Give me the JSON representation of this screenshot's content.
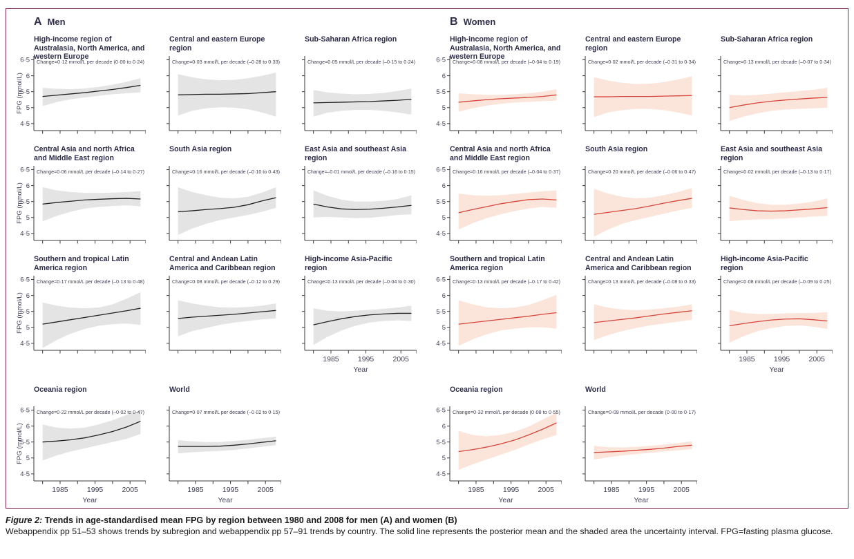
{
  "figure": {
    "border_color": "#7b2150",
    "title_color": "#2d2d4b",
    "axis_color": "#3a3a3a",
    "text_color": "#3f3f55"
  },
  "caption": {
    "prefix": "Figure 2:",
    "title": " Trends in age-standardised mean FPG by region between 1980 and 2008 for men (A) and women (B)",
    "body": "Webappendix pp 51–53 shows trends by subregion and webappendix pp 57–91 trends by country. The solid line represents the posterior mean and the shaded area the uncertainty interval. FPG=fasting plasma glucose."
  },
  "chart_data": {
    "type": "line",
    "x": [
      1980,
      1984,
      1988,
      1992,
      1996,
      2000,
      2004,
      2008
    ],
    "xlabel": "Year",
    "ylabel": "FPG (mmol/L)",
    "ylim": [
      4.28,
      6.62
    ],
    "ytick_values": [
      4.5,
      5,
      5.5,
      6,
      6.5
    ],
    "ytick_labels": [
      "4·5",
      "5",
      "5·5",
      "6",
      "6·5"
    ],
    "xtick_years": [
      1980,
      1985,
      1990,
      1995,
      2000,
      2005
    ],
    "xtick_labeled": [
      1985,
      1995,
      2005
    ],
    "legend": "solid line = posterior mean; shaded area = uncertainty interval",
    "groups": [
      {
        "id": "A",
        "label": "Men",
        "line_color": "#231f20",
        "band_color": "#e4e4e4",
        "charts": [
          {
            "title": "High-income region of Australasia, North America, and western Europe",
            "change": "Change=0·12 mmol/L per decade (0·00 to 0·24)",
            "line": [
              5.35,
              5.39,
              5.43,
              5.47,
              5.52,
              5.57,
              5.63,
              5.7
            ],
            "hi": [
              5.62,
              5.59,
              5.58,
              5.6,
              5.65,
              5.72,
              5.81,
              5.92
            ],
            "lo": [
              5.05,
              5.17,
              5.26,
              5.32,
              5.37,
              5.42,
              5.45,
              5.48
            ]
          },
          {
            "title": "Central and eastern Europe region",
            "change": "Change=0·03 mmol/L per decade (–0·28 to 0·33)",
            "line": [
              5.4,
              5.41,
              5.42,
              5.42,
              5.43,
              5.44,
              5.47,
              5.5
            ],
            "hi": [
              6.05,
              5.95,
              5.89,
              5.86,
              5.87,
              5.92,
              6.0,
              6.1
            ],
            "lo": [
              4.75,
              4.9,
              4.98,
              5.01,
              5.0,
              4.95,
              4.85,
              4.72
            ]
          },
          {
            "title": "Sub-Saharan Africa region",
            "change": "Change=0·05 mmol/L per decade (–0·15 to 0·24)",
            "line": [
              5.15,
              5.16,
              5.17,
              5.18,
              5.19,
              5.21,
              5.23,
              5.26
            ],
            "hi": [
              5.55,
              5.48,
              5.44,
              5.42,
              5.43,
              5.46,
              5.52,
              5.6
            ],
            "lo": [
              4.72,
              4.84,
              4.9,
              4.93,
              4.93,
              4.9,
              4.85,
              4.78
            ]
          },
          {
            "title": "Central Asia and north Africa and Middle East region",
            "change": "Change=0·06 mmol/L per decade (–0·14 to 0·27)",
            "line": [
              5.42,
              5.47,
              5.51,
              5.55,
              5.57,
              5.59,
              5.6,
              5.58
            ],
            "hi": [
              5.95,
              5.85,
              5.8,
              5.77,
              5.77,
              5.78,
              5.8,
              5.83
            ],
            "lo": [
              4.88,
              5.05,
              5.18,
              5.28,
              5.33,
              5.36,
              5.38,
              5.35
            ]
          },
          {
            "title": "South Asia region",
            "change": "Change=0·16 mmol/L per decade (–0·10 to 0·43)",
            "line": [
              5.18,
              5.21,
              5.25,
              5.28,
              5.32,
              5.4,
              5.52,
              5.62
            ],
            "hi": [
              5.95,
              5.8,
              5.7,
              5.62,
              5.6,
              5.65,
              5.78,
              5.95
            ],
            "lo": [
              4.45,
              4.65,
              4.8,
              4.92,
              5.0,
              5.08,
              5.18,
              5.3
            ]
          },
          {
            "title": "East Asia and southeast Asia region",
            "change": "Change=–0·01 mmol/L per decade (–0·16 to 0·15)",
            "line": [
              5.42,
              5.33,
              5.27,
              5.25,
              5.26,
              5.29,
              5.33,
              5.38
            ],
            "hi": [
              5.85,
              5.68,
              5.56,
              5.5,
              5.5,
              5.52,
              5.58,
              5.7
            ],
            "lo": [
              5.0,
              5.02,
              5.0,
              4.98,
              4.99,
              5.03,
              5.08,
              5.1
            ]
          },
          {
            "title": "Southern and tropical Latin America region",
            "change": "Change=0·17 mmol/L per decade (–0·13 to 0·48)",
            "line": [
              5.1,
              5.17,
              5.24,
              5.31,
              5.38,
              5.45,
              5.52,
              5.6
            ],
            "hi": [
              5.78,
              5.68,
              5.62,
              5.6,
              5.62,
              5.72,
              5.9,
              6.1
            ],
            "lo": [
              4.35,
              4.6,
              4.8,
              4.95,
              5.05,
              5.1,
              5.12,
              5.08
            ]
          },
          {
            "title": "Central and Andean Latin America and Caribbean region",
            "change": "Change=0·08 mmol/L per decade (–0·12 to 0·29)",
            "line": [
              5.28,
              5.32,
              5.35,
              5.38,
              5.41,
              5.45,
              5.49,
              5.53
            ],
            "hi": [
              5.85,
              5.75,
              5.68,
              5.63,
              5.62,
              5.64,
              5.68,
              5.75
            ],
            "lo": [
              4.72,
              4.88,
              4.98,
              5.08,
              5.15,
              5.2,
              5.25,
              5.28
            ]
          },
          {
            "title": "High-income Asia-Pacific region",
            "change": "Change=0·13 mmol/L per decade (–0·04 to 0·30)",
            "line": [
              5.08,
              5.18,
              5.27,
              5.34,
              5.39,
              5.42,
              5.44,
              5.44
            ],
            "hi": [
              5.6,
              5.52,
              5.5,
              5.52,
              5.55,
              5.58,
              5.62,
              5.68
            ],
            "lo": [
              4.45,
              4.7,
              4.9,
              5.05,
              5.15,
              5.2,
              5.22,
              5.2
            ]
          },
          {
            "title": "Oceania region",
            "change": "Change=0·22 mmol/L per decade (–0·02 to 0·47)",
            "line": [
              5.5,
              5.53,
              5.57,
              5.63,
              5.72,
              5.83,
              5.97,
              6.15
            ],
            "hi": [
              6.05,
              5.95,
              5.92,
              5.95,
              6.05,
              6.18,
              6.35,
              6.5
            ],
            "lo": [
              4.92,
              5.08,
              5.2,
              5.3,
              5.4,
              5.5,
              5.6,
              5.75
            ]
          },
          {
            "title": "World",
            "change": "Change=0·07 mmol/L per decade (–0·02 to 0·15)",
            "line": [
              5.36,
              5.36,
              5.36,
              5.37,
              5.4,
              5.44,
              5.49,
              5.54
            ],
            "hi": [
              5.56,
              5.52,
              5.5,
              5.5,
              5.53,
              5.57,
              5.62,
              5.67
            ],
            "lo": [
              5.14,
              5.18,
              5.2,
              5.22,
              5.25,
              5.3,
              5.35,
              5.4
            ]
          }
        ]
      },
      {
        "id": "B",
        "label": "Women",
        "line_color": "#d6453a",
        "band_color": "#fbe5da",
        "charts": [
          {
            "title": "High-income region of Australasia, North America, and western Europe",
            "change": "Change=0·08 mmol/L per decade (–0·04 to 0·19)",
            "line": [
              5.17,
              5.21,
              5.25,
              5.28,
              5.3,
              5.32,
              5.35,
              5.4
            ],
            "hi": [
              5.45,
              5.42,
              5.4,
              5.4,
              5.42,
              5.45,
              5.5,
              5.58
            ],
            "lo": [
              4.87,
              4.98,
              5.06,
              5.12,
              5.16,
              5.18,
              5.2,
              5.22
            ]
          },
          {
            "title": "Central and eastern Europe region",
            "change": "Change=0·02 mmol/L per decade (–0·31 to 0·34)",
            "line": [
              5.34,
              5.34,
              5.35,
              5.35,
              5.35,
              5.36,
              5.37,
              5.38
            ],
            "hi": [
              5.95,
              5.85,
              5.78,
              5.74,
              5.75,
              5.8,
              5.88,
              5.98
            ],
            "lo": [
              4.7,
              4.85,
              4.92,
              4.96,
              4.96,
              4.92,
              4.85,
              4.75
            ]
          },
          {
            "title": "Sub-Saharan Africa region",
            "change": "Change=0·13 mmol/L per decade (–0·07 to 0·34)",
            "line": [
              5.0,
              5.08,
              5.15,
              5.2,
              5.24,
              5.27,
              5.3,
              5.32
            ],
            "hi": [
              5.4,
              5.38,
              5.4,
              5.44,
              5.48,
              5.52,
              5.56,
              5.62
            ],
            "lo": [
              4.58,
              4.72,
              4.82,
              4.9,
              4.94,
              4.96,
              4.98,
              5.0
            ]
          },
          {
            "title": "Central Asia and north Africa and Middle East region",
            "change": "Change=0·16 mmol/L per decade (–0·04 to 0·37)",
            "line": [
              5.15,
              5.25,
              5.34,
              5.43,
              5.5,
              5.56,
              5.58,
              5.55
            ],
            "hi": [
              5.75,
              5.7,
              5.68,
              5.7,
              5.74,
              5.78,
              5.82,
              5.85
            ],
            "lo": [
              4.62,
              4.82,
              4.98,
              5.1,
              5.2,
              5.28,
              5.33,
              5.3
            ]
          },
          {
            "title": "South Asia region",
            "change": "Change=0·20 mmol/L per decade (–0·06 to 0·47)",
            "line": [
              5.1,
              5.16,
              5.22,
              5.28,
              5.36,
              5.45,
              5.53,
              5.6
            ],
            "hi": [
              5.9,
              5.75,
              5.65,
              5.6,
              5.62,
              5.7,
              5.8,
              5.92
            ],
            "lo": [
              4.4,
              4.62,
              4.8,
              4.92,
              5.02,
              5.12,
              5.22,
              5.3
            ]
          },
          {
            "title": "East Asia and southeast Asia region",
            "change": "Change=0·02 mmol/L per decade (–0·13 to 0·17)",
            "line": [
              5.3,
              5.25,
              5.21,
              5.2,
              5.21,
              5.24,
              5.27,
              5.31
            ],
            "hi": [
              5.68,
              5.55,
              5.45,
              5.4,
              5.4,
              5.44,
              5.5,
              5.6
            ],
            "lo": [
              4.88,
              4.92,
              4.94,
              4.95,
              4.97,
              5.0,
              5.03,
              5.05
            ]
          },
          {
            "title": "Southern and tropical Latin America region",
            "change": "Change=0·13 mmol/L per decade (–0·17 to 0·42)",
            "line": [
              5.1,
              5.15,
              5.2,
              5.25,
              5.3,
              5.35,
              5.41,
              5.46
            ],
            "hi": [
              5.85,
              5.72,
              5.63,
              5.6,
              5.62,
              5.7,
              5.85,
              6.02
            ],
            "lo": [
              4.42,
              4.62,
              4.78,
              4.9,
              4.96,
              5.0,
              5.0,
              4.96
            ]
          },
          {
            "title": "Central and Andean Latin America and Caribbean region",
            "change": "Change=0·13 mmol/L per decade (–0·08 to 0·33)",
            "line": [
              5.15,
              5.2,
              5.25,
              5.3,
              5.36,
              5.42,
              5.47,
              5.52
            ],
            "hi": [
              5.72,
              5.62,
              5.56,
              5.54,
              5.56,
              5.6,
              5.65,
              5.72
            ],
            "lo": [
              4.6,
              4.76,
              4.88,
              4.98,
              5.06,
              5.12,
              5.18,
              5.24
            ]
          },
          {
            "title": "High-income Asia-Pacific region",
            "change": "Change=0·08 mmol/L per decade (–0·09 to 0·25)",
            "line": [
              5.05,
              5.12,
              5.18,
              5.23,
              5.26,
              5.27,
              5.24,
              5.2
            ],
            "hi": [
              5.55,
              5.45,
              5.42,
              5.42,
              5.44,
              5.45,
              5.45,
              5.48
            ],
            "lo": [
              4.52,
              4.72,
              4.88,
              4.98,
              5.04,
              5.06,
              5.02,
              4.95
            ]
          },
          {
            "title": "Oceania region",
            "change": "Change=0·32 mmol/L per decade (0·08 to 0·55)",
            "line": [
              5.2,
              5.26,
              5.34,
              5.44,
              5.56,
              5.72,
              5.9,
              6.1
            ],
            "hi": [
              5.85,
              5.72,
              5.68,
              5.72,
              5.82,
              5.98,
              6.2,
              6.42
            ],
            "lo": [
              4.62,
              4.8,
              4.95,
              5.1,
              5.25,
              5.42,
              5.58,
              5.72
            ]
          },
          {
            "title": "World",
            "change": "Change=0·09 mmol/L per decade (0·00 to 0·17)",
            "line": [
              5.17,
              5.19,
              5.21,
              5.24,
              5.27,
              5.31,
              5.36,
              5.4
            ],
            "hi": [
              5.38,
              5.34,
              5.33,
              5.35,
              5.38,
              5.42,
              5.47,
              5.52
            ],
            "lo": [
              4.95,
              5.02,
              5.08,
              5.12,
              5.16,
              5.2,
              5.24,
              5.28
            ]
          }
        ]
      }
    ]
  }
}
